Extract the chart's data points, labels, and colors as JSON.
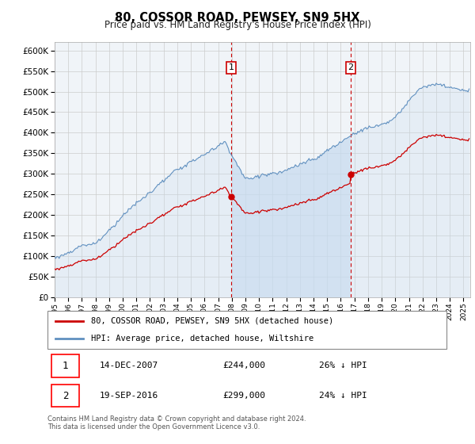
{
  "title": "80, COSSOR ROAD, PEWSEY, SN9 5HX",
  "subtitle": "Price paid vs. HM Land Registry's House Price Index (HPI)",
  "ylim": [
    0,
    620000
  ],
  "yticks": [
    0,
    50000,
    100000,
    150000,
    200000,
    250000,
    300000,
    350000,
    400000,
    450000,
    500000,
    550000,
    600000
  ],
  "xlim_start": 1995.0,
  "xlim_end": 2025.5,
  "sale1_date": 2007.96,
  "sale1_price": 244000,
  "sale1_label": "1",
  "sale2_date": 2016.72,
  "sale2_price": 299000,
  "sale2_label": "2",
  "legend_line1": "80, COSSOR ROAD, PEWSEY, SN9 5HX (detached house)",
  "legend_line2": "HPI: Average price, detached house, Wiltshire",
  "table_row1_num": "1",
  "table_row1_date": "14-DEC-2007",
  "table_row1_price": "£244,000",
  "table_row1_hpi": "26% ↓ HPI",
  "table_row2_num": "2",
  "table_row2_date": "19-SEP-2016",
  "table_row2_price": "£299,000",
  "table_row2_hpi": "24% ↓ HPI",
  "footer": "Contains HM Land Registry data © Crown copyright and database right 2024.\nThis data is licensed under the Open Government Licence v3.0.",
  "hpi_fill_color": "#c8dcf0",
  "hpi_line_color": "#6090c0",
  "red_color": "#cc0000",
  "bg_color": "#ffffff",
  "grid_color": "#cccccc",
  "shade_color": "#c8dcf0"
}
